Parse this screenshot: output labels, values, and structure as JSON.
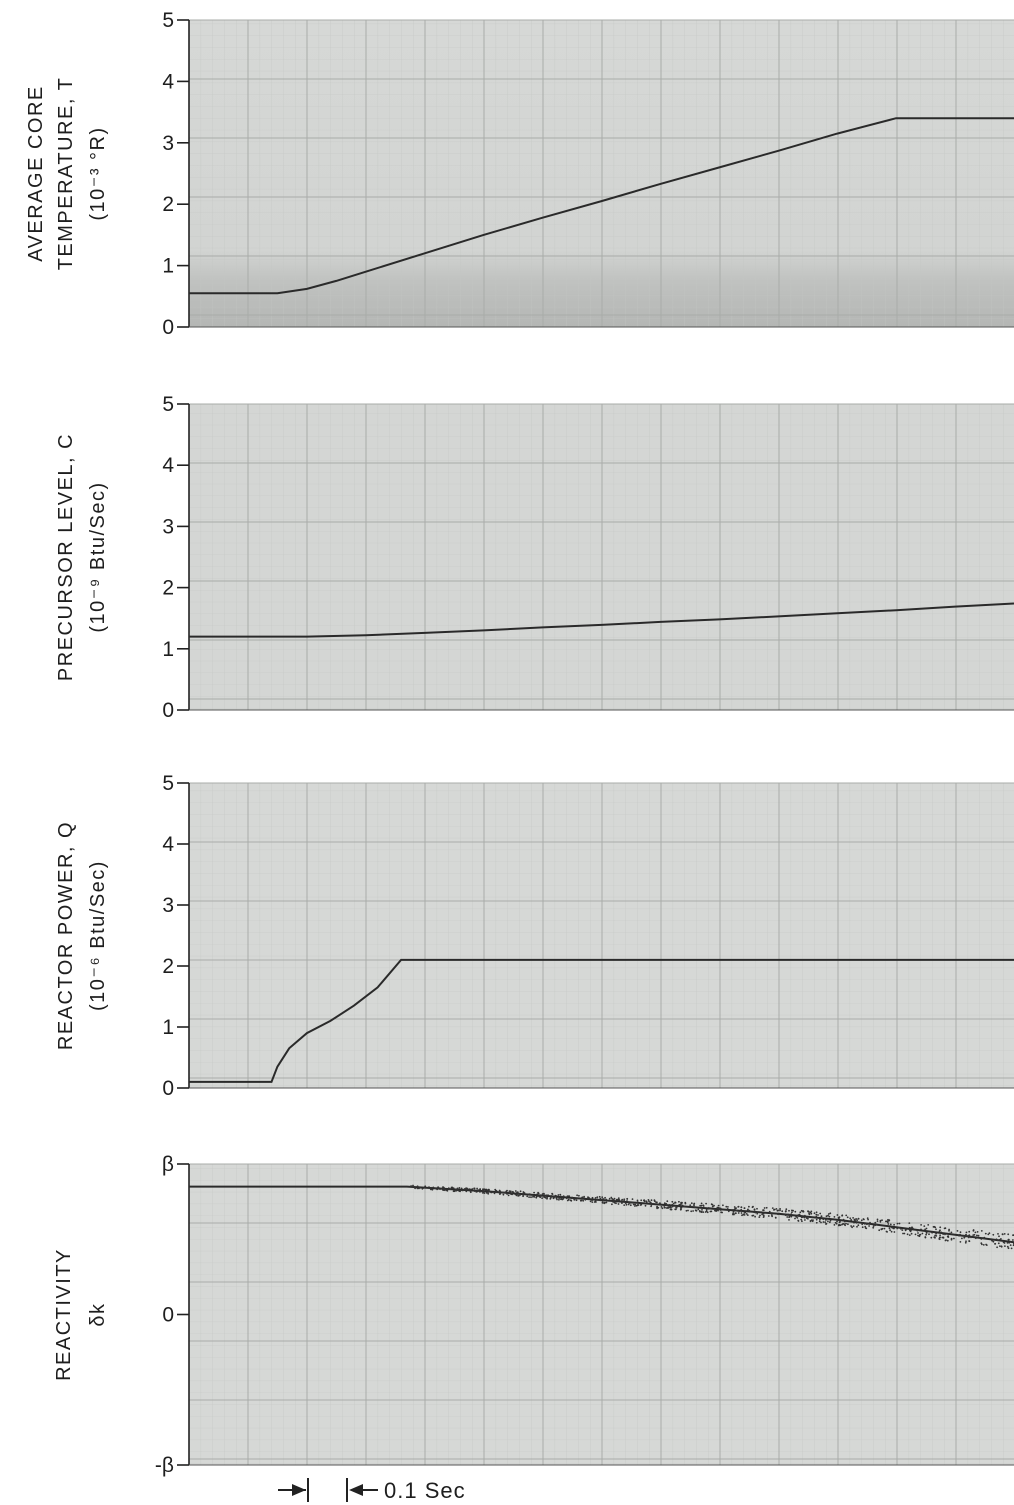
{
  "chart_data": [
    {
      "type": "line",
      "ylabel_lines": [
        "AVERAGE CORE",
        "TEMPERATURE, T",
        "(10⁻³ °R)"
      ],
      "yticks": [
        "0",
        "1",
        "2",
        "3",
        "4",
        "5"
      ],
      "ylim": [
        0,
        5
      ],
      "xlim": [
        0,
        1.4
      ],
      "grid": true,
      "series": [
        {
          "x": [
            0,
            0.15,
            0.2,
            0.25,
            0.3,
            0.4,
            0.5,
            0.6,
            0.7,
            0.8,
            0.9,
            1.0,
            1.1,
            1.2,
            1.28,
            1.4
          ],
          "y": [
            0.55,
            0.55,
            0.62,
            0.75,
            0.9,
            1.2,
            1.5,
            1.78,
            2.05,
            2.33,
            2.6,
            2.87,
            3.15,
            3.4,
            3.4,
            3.4
          ]
        }
      ]
    },
    {
      "type": "line",
      "ylabel_lines": [
        "PRECURSOR LEVEL, C",
        "(10⁻⁹ Btu/Sec)"
      ],
      "yticks": [
        "0",
        "1",
        "2",
        "3",
        "4",
        "5"
      ],
      "ylim": [
        0,
        5
      ],
      "xlim": [
        0,
        1.4
      ],
      "grid": true,
      "series": [
        {
          "x": [
            0,
            0.2,
            0.3,
            0.4,
            0.5,
            0.6,
            0.7,
            0.8,
            0.9,
            1.0,
            1.1,
            1.2,
            1.3,
            1.4
          ],
          "y": [
            1.2,
            1.2,
            1.22,
            1.26,
            1.3,
            1.35,
            1.39,
            1.44,
            1.48,
            1.53,
            1.58,
            1.63,
            1.69,
            1.74
          ]
        }
      ]
    },
    {
      "type": "line",
      "ylabel_lines": [
        "REACTOR POWER, Q",
        "(10⁻⁶ Btu/Sec)"
      ],
      "yticks": [
        "0",
        "1",
        "2",
        "3",
        "4",
        "5"
      ],
      "ylim": [
        0,
        5
      ],
      "xlim": [
        0,
        1.4
      ],
      "grid": true,
      "series": [
        {
          "x": [
            0,
            0.14,
            0.15,
            0.17,
            0.2,
            0.24,
            0.28,
            0.32,
            0.36,
            0.4,
            0.6,
            0.8,
            1.0,
            1.2,
            1.4
          ],
          "y": [
            0.1,
            0.1,
            0.35,
            0.65,
            0.9,
            1.1,
            1.35,
            1.65,
            2.1,
            2.1,
            2.1,
            2.1,
            2.1,
            2.1,
            2.1
          ]
        }
      ]
    },
    {
      "type": "line",
      "ylabel_lines": [
        "REACTIVITY",
        "δk"
      ],
      "yticks": [
        "-β",
        "0",
        "β"
      ],
      "ylim": [
        -1,
        1
      ],
      "xlim": [
        0,
        1.4
      ],
      "grid": true,
      "series": [
        {
          "x": [
            0,
            0.2,
            0.37,
            0.5,
            0.6,
            0.7,
            0.8,
            0.9,
            1.0,
            1.1,
            1.2,
            1.3,
            1.4
          ],
          "y": [
            0.85,
            0.85,
            0.85,
            0.82,
            0.79,
            0.76,
            0.73,
            0.7,
            0.67,
            0.63,
            0.58,
            0.53,
            0.48
          ]
        }
      ],
      "scale_label": "0.1 Sec"
    }
  ]
}
